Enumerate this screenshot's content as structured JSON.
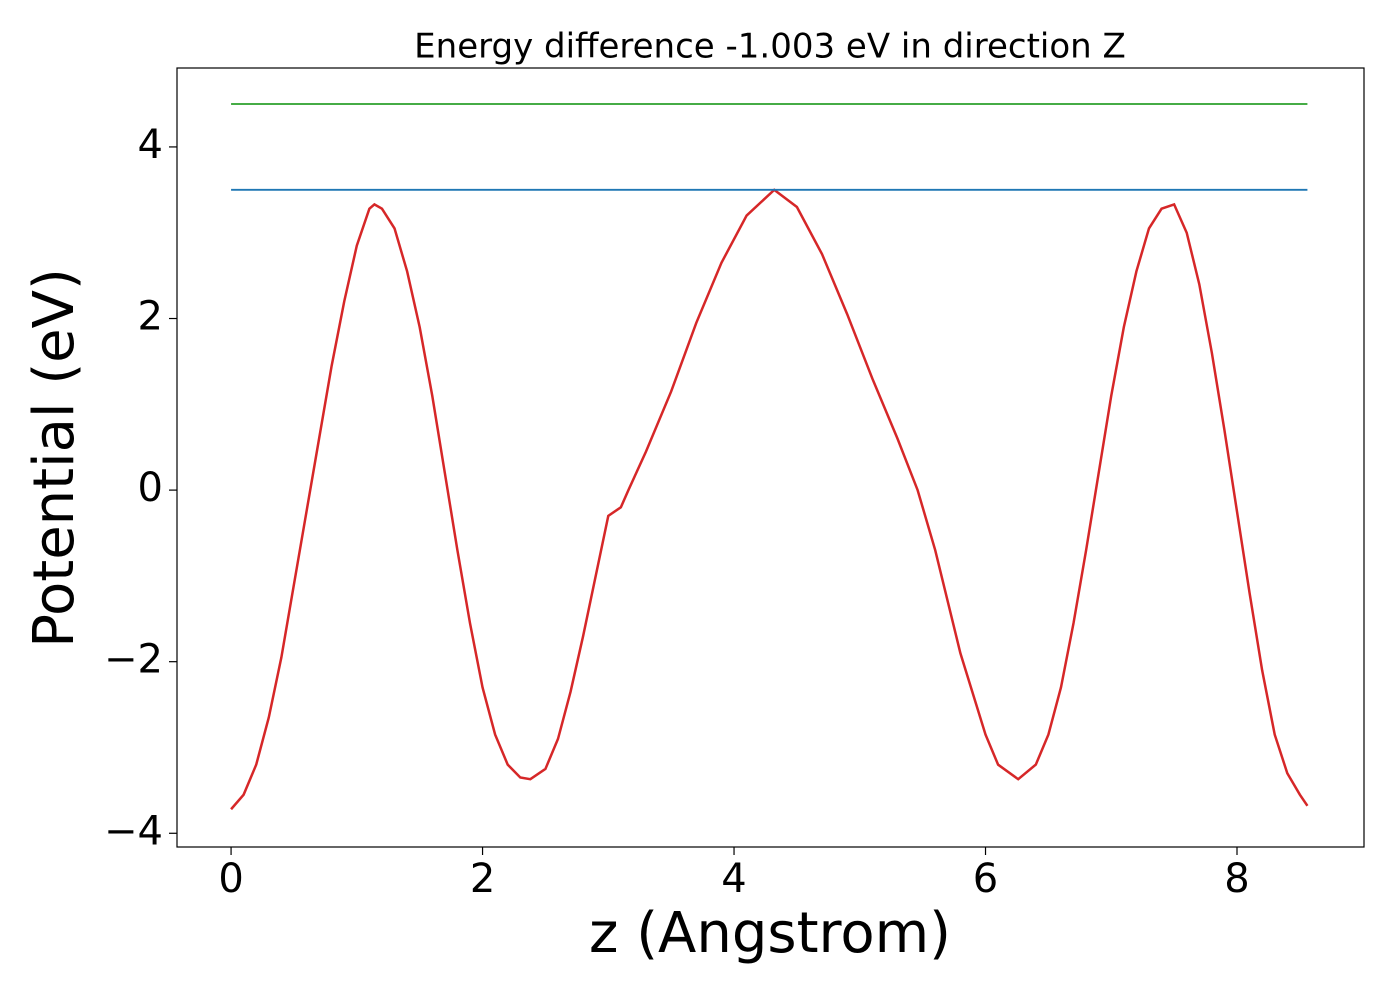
{
  "chart_data": {
    "type": "line",
    "title": "Energy difference -1.003 eV in direction Z",
    "x_label": "z (Angstrom)",
    "y_label": "Potential (eV)",
    "series": [
      {
        "color": "#d62728",
        "x": [
          0,
          0.1,
          0.2,
          0.3,
          0.4,
          0.5,
          0.6,
          0.7,
          0.8,
          0.9,
          1.0,
          1.1,
          1.14,
          1.2,
          1.3,
          1.4,
          1.5,
          1.6,
          1.7,
          1.8,
          1.9,
          2.0,
          2.1,
          2.2,
          2.3,
          2.38,
          2.5,
          2.6,
          2.7,
          2.8,
          2.9,
          3.0,
          3.1,
          3.16,
          3.3,
          3.5,
          3.7,
          3.9,
          4.1,
          4.32,
          4.5,
          4.7,
          4.9,
          5.1,
          5.3,
          5.46,
          5.6,
          5.8,
          6.0,
          6.1,
          6.26,
          6.4,
          6.5,
          6.6,
          6.7,
          6.8,
          6.9,
          7.0,
          7.1,
          7.2,
          7.3,
          7.4,
          7.5,
          7.6,
          7.7,
          7.8,
          7.9,
          8.0,
          8.1,
          8.2,
          8.3,
          8.4,
          8.5,
          8.56
        ],
        "values": [
          -3.72,
          -3.55,
          -3.2,
          -2.65,
          -1.95,
          -1.1,
          -0.25,
          0.6,
          1.45,
          2.2,
          2.85,
          3.28,
          3.33,
          3.28,
          3.05,
          2.55,
          1.9,
          1.1,
          0.2,
          -0.7,
          -1.55,
          -2.3,
          -2.85,
          -3.2,
          -3.35,
          -3.37,
          -3.25,
          -2.9,
          -2.35,
          -1.7,
          -1.0,
          -0.3,
          -0.2,
          0,
          0.45,
          1.15,
          1.95,
          2.65,
          3.2,
          3.5,
          3.3,
          2.75,
          2.05,
          1.3,
          0.6,
          0,
          -0.7,
          -1.9,
          -2.85,
          -3.2,
          -3.37,
          -3.2,
          -2.85,
          -2.3,
          -1.55,
          -0.7,
          0.2,
          1.1,
          1.9,
          2.55,
          3.05,
          3.28,
          3.33,
          3.0,
          2.4,
          1.6,
          0.7,
          -0.25,
          -1.2,
          -2.1,
          -2.85,
          -3.3,
          -3.55,
          -3.68
        ]
      },
      {
        "color": "#1f77b4",
        "x": [
          0,
          8.56
        ],
        "values": [
          3.5,
          3.5
        ]
      },
      {
        "color": "#2ca02c",
        "x": [
          0,
          8.56
        ],
        "values": [
          4.5,
          4.5
        ]
      }
    ],
    "xlim": [
      -0.43,
      9.01
    ],
    "ylim": [
      -4.16,
      4.92
    ],
    "xticks": [
      0,
      2,
      4,
      6,
      8
    ],
    "yticks": [
      {
        "value": -4,
        "label": "−4"
      },
      {
        "value": -2,
        "label": "−2"
      },
      0,
      2,
      4
    ]
  }
}
